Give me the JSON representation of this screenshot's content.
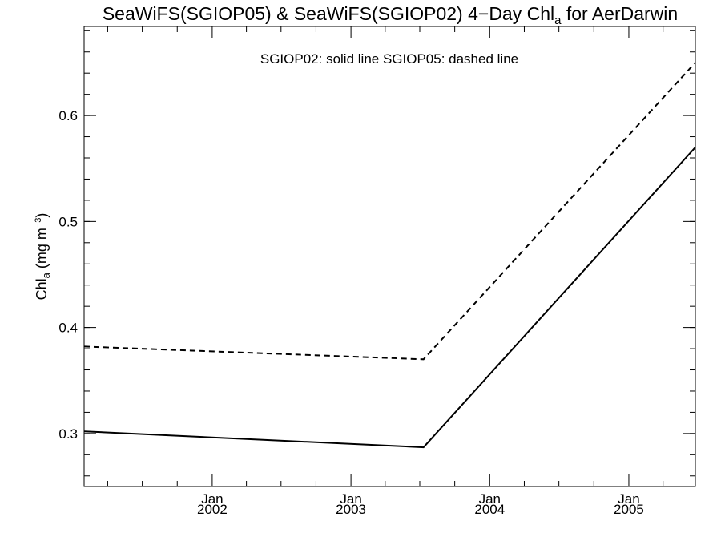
{
  "chart_data": {
    "type": "line",
    "title": {
      "main": "SeaWiFS(SGIOP05) & SeaWiFS(SGIOP02) 4−Day Chl",
      "sub": "a",
      "rest": " for AerDarwin"
    },
    "ylabel": {
      "main": "Chl",
      "sub": "a",
      "unit": " (mg m",
      "sup": "−3",
      "close": ")"
    },
    "annotation": "SGIOP02: solid line   SGIOP05: dashed line",
    "xlim": [
      "2001-01-29",
      "2005-06-25"
    ],
    "ylim": [
      0.25,
      0.684
    ],
    "x_ticks": [
      {
        "date": "2002-01-01",
        "line1": "Jan",
        "line2": "2002"
      },
      {
        "date": "2003-01-01",
        "line1": "Jan",
        "line2": "2003"
      },
      {
        "date": "2004-01-01",
        "line1": "Jan",
        "line2": "2004"
      },
      {
        "date": "2005-01-01",
        "line1": "Jan",
        "line2": "2005"
      }
    ],
    "x_minor_months": 3,
    "y_ticks": [
      {
        "value": 0.3,
        "label": "0.3"
      },
      {
        "value": 0.4,
        "label": "0.4"
      },
      {
        "value": 0.5,
        "label": "0.5"
      },
      {
        "value": 0.6,
        "label": "0.6"
      }
    ],
    "y_minor_step": 0.02,
    "series": [
      {
        "name": "SGIOP02",
        "style": "solid",
        "color": "#000000",
        "points": [
          {
            "x": "2001-01-29",
            "y": 0.302
          },
          {
            "x": "2003-07-11",
            "y": 0.287
          },
          {
            "x": "2005-06-25",
            "y": 0.57
          }
        ]
      },
      {
        "name": "SGIOP05",
        "style": "dashed",
        "color": "#000000",
        "points": [
          {
            "x": "2001-01-29",
            "y": 0.382
          },
          {
            "x": "2003-07-11",
            "y": 0.37
          },
          {
            "x": "2005-06-25",
            "y": 0.65
          }
        ]
      }
    ]
  }
}
